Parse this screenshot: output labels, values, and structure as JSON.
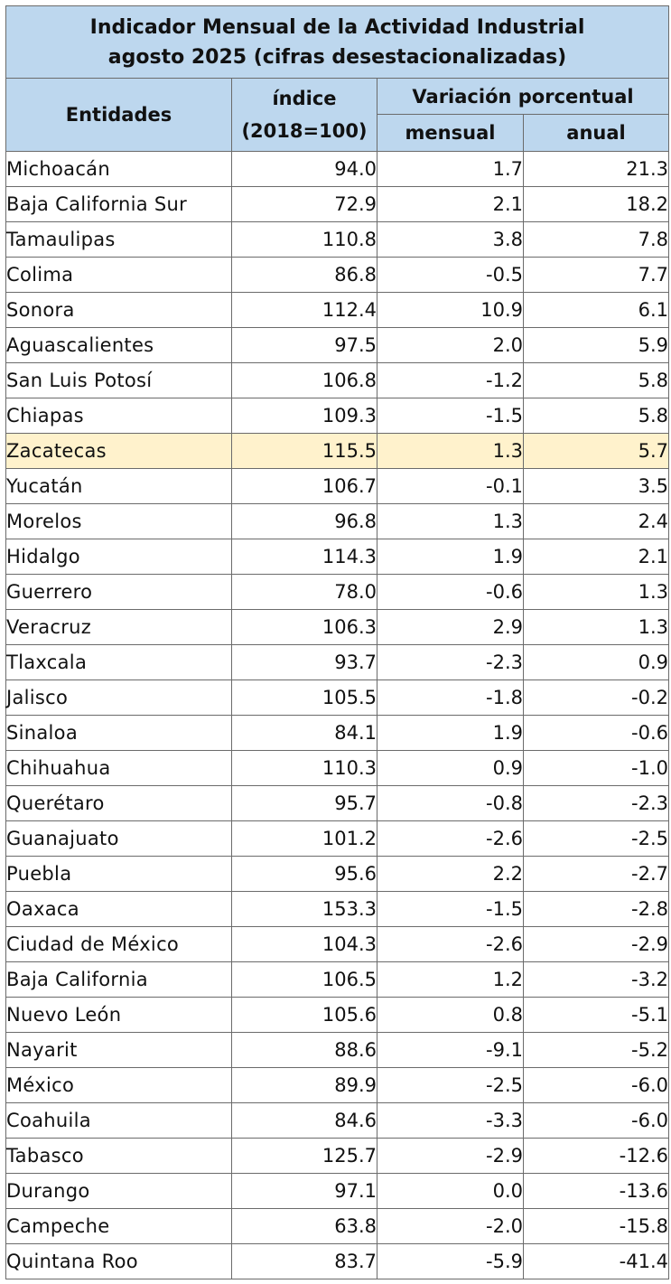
{
  "table": {
    "title_line1": "Indicador Mensual de la Actividad Industrial",
    "title_line2": "agosto 2025 (cifras desestacionalizadas)",
    "col_entidades": "Entidades",
    "col_indice_line1": "índice",
    "col_indice_line2": "(2018=100)",
    "col_variacion": "Variación porcentual",
    "col_mensual": "mensual",
    "col_anual": "anual",
    "highlight_color": "#fff2cc",
    "header_color": "#bdd7ee",
    "rows": [
      {
        "entidad": "Michoacán",
        "indice": "94.0",
        "mensual": "1.7",
        "anual": "21.3"
      },
      {
        "entidad": "Baja California Sur",
        "indice": "72.9",
        "mensual": "2.1",
        "anual": "18.2"
      },
      {
        "entidad": "Tamaulipas",
        "indice": "110.8",
        "mensual": "3.8",
        "anual": "7.8"
      },
      {
        "entidad": "Colima",
        "indice": "86.8",
        "mensual": "-0.5",
        "anual": "7.7"
      },
      {
        "entidad": "Sonora",
        "indice": "112.4",
        "mensual": "10.9",
        "anual": "6.1"
      },
      {
        "entidad": "Aguascalientes",
        "indice": "97.5",
        "mensual": "2.0",
        "anual": "5.9"
      },
      {
        "entidad": "San Luis Potosí",
        "indice": "106.8",
        "mensual": "-1.2",
        "anual": "5.8"
      },
      {
        "entidad": "Chiapas",
        "indice": "109.3",
        "mensual": "-1.5",
        "anual": "5.8"
      },
      {
        "entidad": "Zacatecas",
        "indice": "115.5",
        "mensual": "1.3",
        "anual": "5.7",
        "highlighted": true
      },
      {
        "entidad": "Yucatán",
        "indice": "106.7",
        "mensual": "-0.1",
        "anual": "3.5"
      },
      {
        "entidad": "Morelos",
        "indice": "96.8",
        "mensual": "1.3",
        "anual": "2.4"
      },
      {
        "entidad": "Hidalgo",
        "indice": "114.3",
        "mensual": "1.9",
        "anual": "2.1"
      },
      {
        "entidad": "Guerrero",
        "indice": "78.0",
        "mensual": "-0.6",
        "anual": "1.3"
      },
      {
        "entidad": "Veracruz",
        "indice": "106.3",
        "mensual": "2.9",
        "anual": "1.3"
      },
      {
        "entidad": "Tlaxcala",
        "indice": "93.7",
        "mensual": "-2.3",
        "anual": "0.9"
      },
      {
        "entidad": "Jalisco",
        "indice": "105.5",
        "mensual": "-1.8",
        "anual": "-0.2"
      },
      {
        "entidad": "Sinaloa",
        "indice": "84.1",
        "mensual": "1.9",
        "anual": "-0.6"
      },
      {
        "entidad": "Chihuahua",
        "indice": "110.3",
        "mensual": "0.9",
        "anual": "-1.0"
      },
      {
        "entidad": "Querétaro",
        "indice": "95.7",
        "mensual": "-0.8",
        "anual": "-2.3"
      },
      {
        "entidad": "Guanajuato",
        "indice": "101.2",
        "mensual": "-2.6",
        "anual": "-2.5"
      },
      {
        "entidad": "Puebla",
        "indice": "95.6",
        "mensual": "2.2",
        "anual": "-2.7"
      },
      {
        "entidad": "Oaxaca",
        "indice": "153.3",
        "mensual": "-1.5",
        "anual": "-2.8"
      },
      {
        "entidad": "Ciudad de México",
        "indice": "104.3",
        "mensual": "-2.6",
        "anual": "-2.9"
      },
      {
        "entidad": "Baja California",
        "indice": "106.5",
        "mensual": "1.2",
        "anual": "-3.2"
      },
      {
        "entidad": "Nuevo León",
        "indice": "105.6",
        "mensual": "0.8",
        "anual": "-5.1"
      },
      {
        "entidad": "Nayarit",
        "indice": "88.6",
        "mensual": "-9.1",
        "anual": "-5.2"
      },
      {
        "entidad": "México",
        "indice": "89.9",
        "mensual": "-2.5",
        "anual": "-6.0"
      },
      {
        "entidad": "Coahuila",
        "indice": "84.6",
        "mensual": "-3.3",
        "anual": "-6.0"
      },
      {
        "entidad": "Tabasco",
        "indice": "125.7",
        "mensual": "-2.9",
        "anual": "-12.6"
      },
      {
        "entidad": "Durango",
        "indice": "97.1",
        "mensual": "0.0",
        "anual": "-13.6"
      },
      {
        "entidad": "Campeche",
        "indice": "63.8",
        "mensual": "-2.0",
        "anual": "-15.8"
      },
      {
        "entidad": "Quintana Roo",
        "indice": "83.7",
        "mensual": "-5.9",
        "anual": "-41.4"
      }
    ]
  }
}
